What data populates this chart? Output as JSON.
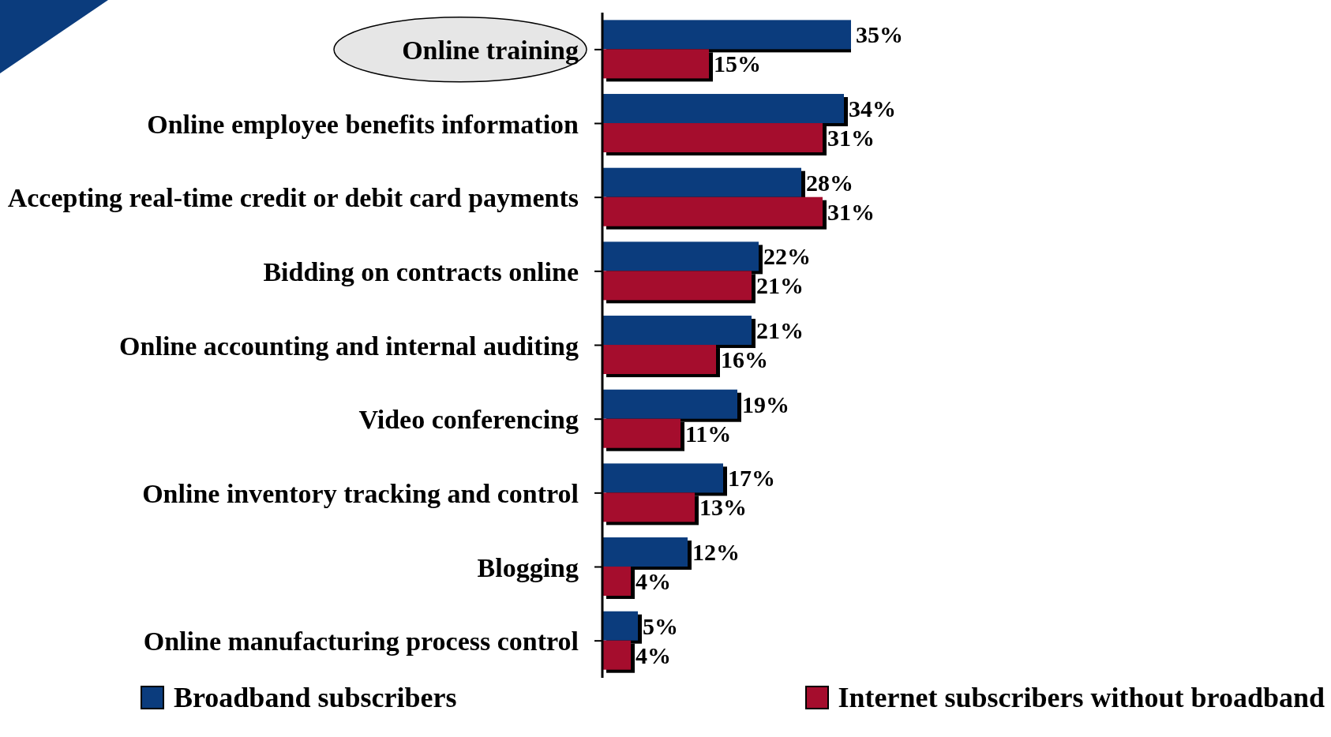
{
  "chart_data": {
    "type": "bar",
    "orientation": "horizontal",
    "categories": [
      "Online training",
      "Online employee benefits information",
      "Accepting real-time credit or debit card payments",
      "Bidding on contracts online",
      "Online accounting and internal auditing",
      "Video conferencing",
      "Online inventory tracking and control",
      "Blogging",
      "Online manufacturing process control"
    ],
    "series": [
      {
        "name": "Broadband subscribers",
        "color": "#0b3c7d",
        "values": [
          35,
          34,
          28,
          22,
          21,
          19,
          17,
          12,
          5
        ],
        "value_labels": [
          "35%",
          "34%",
          "28%",
          "22%",
          "21%",
          "19%",
          "17%",
          "12%",
          "5%"
        ]
      },
      {
        "name": "Internet subscribers without broadband",
        "color": "#a50d2d",
        "values": [
          15,
          31,
          31,
          21,
          16,
          11,
          13,
          4,
          4
        ],
        "value_labels": [
          "15%",
          "31%",
          "31%",
          "21%",
          "16%",
          "11%",
          "13%",
          "4%",
          "4%"
        ]
      }
    ],
    "legend": "bottom",
    "tick_labels": "y"
  }
}
